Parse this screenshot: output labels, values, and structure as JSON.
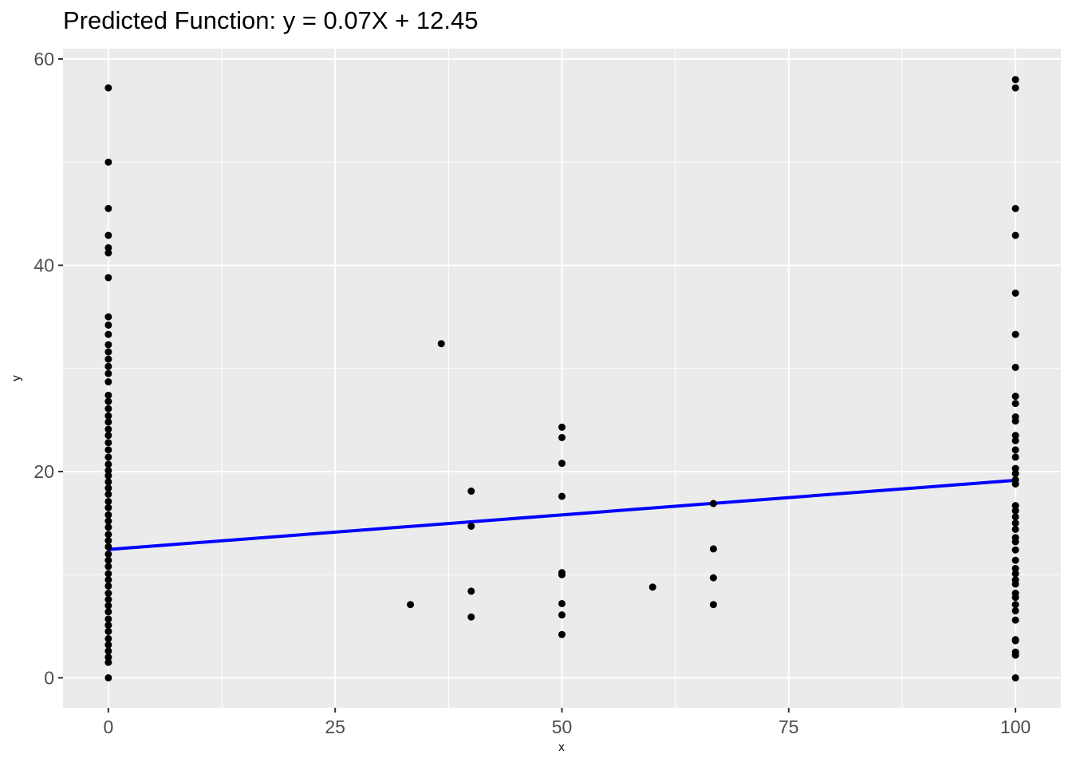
{
  "chart_data": {
    "type": "scatter",
    "title": "Predicted Function: y = 0.07X + 12.45",
    "xlabel": "x",
    "ylabel": "y",
    "xlim": [
      -5,
      105
    ],
    "ylim": [
      -2.9,
      61
    ],
    "x_ticks": [
      0,
      25,
      50,
      75,
      100
    ],
    "y_ticks": [
      0,
      20,
      40,
      60
    ],
    "grid": true,
    "legend": "none",
    "colors": {
      "panel_bg": "#ebebeb",
      "grid": "#ffffff",
      "point": "#000000",
      "fit_line": "#0000ff"
    },
    "points": [
      [
        0,
        57.2
      ],
      [
        0,
        50.0
      ],
      [
        0,
        45.5
      ],
      [
        0,
        42.9
      ],
      [
        0,
        41.7
      ],
      [
        0,
        41.2
      ],
      [
        0,
        38.8
      ],
      [
        0,
        35.0
      ],
      [
        0,
        34.2
      ],
      [
        0,
        33.3
      ],
      [
        0,
        32.3
      ],
      [
        0,
        31.6
      ],
      [
        0,
        30.9
      ],
      [
        0,
        30.2
      ],
      [
        0,
        29.5
      ],
      [
        0,
        28.7
      ],
      [
        0,
        27.4
      ],
      [
        0,
        26.8
      ],
      [
        0,
        26.1
      ],
      [
        0,
        25.4
      ],
      [
        0,
        24.8
      ],
      [
        0,
        24.1
      ],
      [
        0,
        23.5
      ],
      [
        0,
        22.8
      ],
      [
        0,
        22.1
      ],
      [
        0,
        21.4
      ],
      [
        0,
        20.7
      ],
      [
        0,
        20.1
      ],
      [
        0,
        19.6
      ],
      [
        0,
        19.0
      ],
      [
        0,
        18.4
      ],
      [
        0,
        17.8
      ],
      [
        0,
        17.1
      ],
      [
        0,
        16.5
      ],
      [
        0,
        15.8
      ],
      [
        0,
        15.2
      ],
      [
        0,
        14.6
      ],
      [
        0,
        13.9
      ],
      [
        0,
        13.3
      ],
      [
        0,
        12.7
      ],
      [
        0,
        12.0
      ],
      [
        0,
        11.4
      ],
      [
        0,
        10.8
      ],
      [
        0,
        10.1
      ],
      [
        0,
        9.5
      ],
      [
        0,
        8.9
      ],
      [
        0,
        8.2
      ],
      [
        0,
        7.6
      ],
      [
        0,
        7.0
      ],
      [
        0,
        6.4
      ],
      [
        0,
        5.7
      ],
      [
        0,
        5.1
      ],
      [
        0,
        4.5
      ],
      [
        0,
        3.8
      ],
      [
        0,
        3.2
      ],
      [
        0,
        2.6
      ],
      [
        0,
        2.0
      ],
      [
        0,
        1.5
      ],
      [
        0,
        0.0
      ],
      [
        33.3,
        7.1
      ],
      [
        36.7,
        32.4
      ],
      [
        40,
        18.1
      ],
      [
        40,
        14.7
      ],
      [
        40,
        8.4
      ],
      [
        40,
        5.9
      ],
      [
        50,
        24.3
      ],
      [
        50,
        23.3
      ],
      [
        50,
        20.8
      ],
      [
        50,
        17.6
      ],
      [
        50,
        10.2
      ],
      [
        50,
        10.0
      ],
      [
        50,
        7.2
      ],
      [
        50,
        6.1
      ],
      [
        50,
        4.2
      ],
      [
        60,
        8.8
      ],
      [
        66.7,
        16.9
      ],
      [
        66.7,
        12.5
      ],
      [
        66.7,
        9.7
      ],
      [
        66.7,
        7.1
      ],
      [
        100,
        58.0
      ],
      [
        100,
        57.2
      ],
      [
        100,
        45.5
      ],
      [
        100,
        42.9
      ],
      [
        100,
        37.3
      ],
      [
        100,
        33.3
      ],
      [
        100,
        30.1
      ],
      [
        100,
        27.3
      ],
      [
        100,
        26.6
      ],
      [
        100,
        25.3
      ],
      [
        100,
        24.9
      ],
      [
        100,
        23.5
      ],
      [
        100,
        23.0
      ],
      [
        100,
        22.1
      ],
      [
        100,
        21.4
      ],
      [
        100,
        20.3
      ],
      [
        100,
        19.8
      ],
      [
        100,
        19.2
      ],
      [
        100,
        18.8
      ],
      [
        100,
        16.7
      ],
      [
        100,
        16.2
      ],
      [
        100,
        15.6
      ],
      [
        100,
        15.0
      ],
      [
        100,
        14.4
      ],
      [
        100,
        13.6
      ],
      [
        100,
        13.2
      ],
      [
        100,
        12.4
      ],
      [
        100,
        11.4
      ],
      [
        100,
        10.6
      ],
      [
        100,
        10.1
      ],
      [
        100,
        9.5
      ],
      [
        100,
        9.1
      ],
      [
        100,
        8.2
      ],
      [
        100,
        7.8
      ],
      [
        100,
        7.1
      ],
      [
        100,
        6.5
      ],
      [
        100,
        5.6
      ],
      [
        100,
        3.7
      ],
      [
        100,
        3.6
      ],
      [
        100,
        2.5
      ],
      [
        100,
        2.2
      ],
      [
        100,
        0.0
      ]
    ],
    "fit_line": {
      "slope": 0.067,
      "intercept": 12.45,
      "x_range": [
        0,
        100
      ]
    }
  }
}
